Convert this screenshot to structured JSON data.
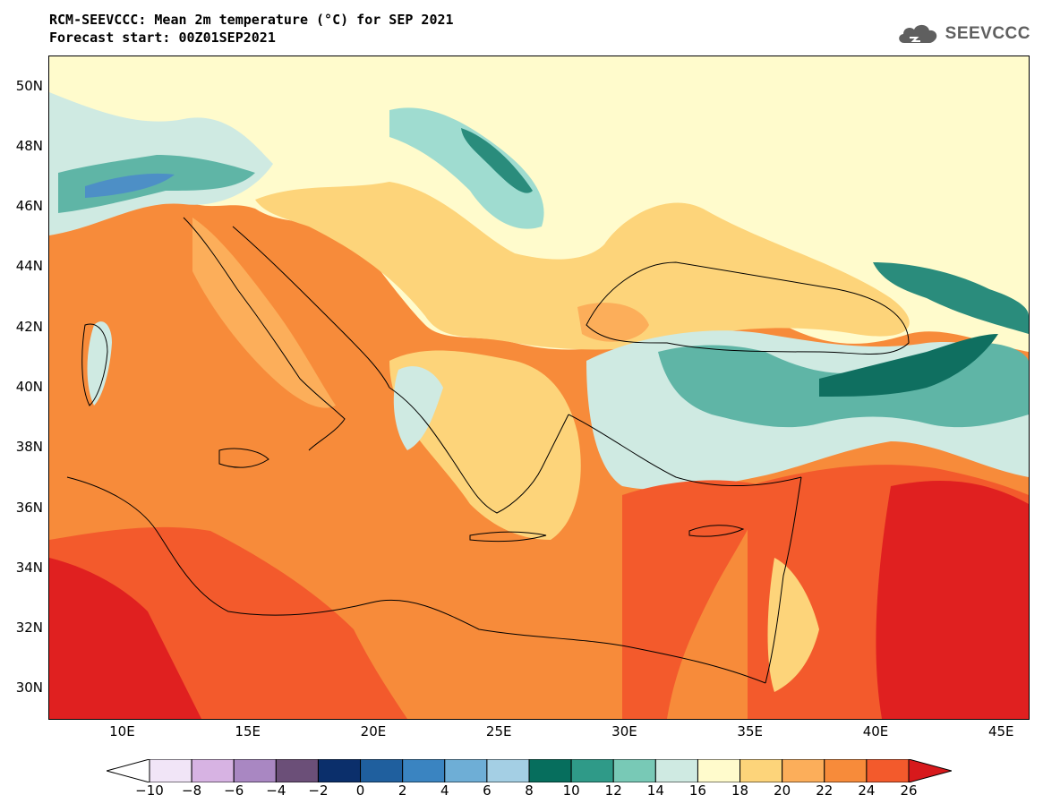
{
  "header": {
    "title_line1": "RCM-SEEVCCC: Mean 2m temperature (°C) for SEP 2021",
    "title_line2": "Forecast start: 00Z01SEP2021",
    "logo_text": "SEEVCCC"
  },
  "axes": {
    "lat_labels": [
      {
        "deg": 50,
        "label": "50N"
      },
      {
        "deg": 48,
        "label": "48N"
      },
      {
        "deg": 46,
        "label": "46N"
      },
      {
        "deg": 44,
        "label": "44N"
      },
      {
        "deg": 42,
        "label": "42N"
      },
      {
        "deg": 40,
        "label": "40N"
      },
      {
        "deg": 38,
        "label": "38N"
      },
      {
        "deg": 36,
        "label": "36N"
      },
      {
        "deg": 34,
        "label": "34N"
      },
      {
        "deg": 32,
        "label": "32N"
      },
      {
        "deg": 30,
        "label": "30N"
      }
    ],
    "lon_labels": [
      {
        "deg": 10,
        "label": "10E"
      },
      {
        "deg": 15,
        "label": "15E"
      },
      {
        "deg": 20,
        "label": "20E"
      },
      {
        "deg": 25,
        "label": "25E"
      },
      {
        "deg": 30,
        "label": "30E"
      },
      {
        "deg": 35,
        "label": "35E"
      },
      {
        "deg": 40,
        "label": "40E"
      },
      {
        "deg": 45,
        "label": "45E"
      }
    ],
    "lon_range": [
      7,
      46
    ],
    "lat_range": [
      29,
      51
    ]
  },
  "colorbar": {
    "labels": [
      "−10",
      "−8",
      "−6",
      "−4",
      "−2",
      "0",
      "2",
      "4",
      "6",
      "8",
      "10",
      "12",
      "14",
      "16",
      "18",
      "20",
      "22",
      "24",
      "26"
    ],
    "under_color": "#ffffff",
    "over_color": "#d7191c",
    "colors": [
      "#f1e5f7",
      "#d7b3e3",
      "#a987c2",
      "#6b4f78",
      "#0b2f6b",
      "#1f5f9e",
      "#3a84c1",
      "#6eaed6",
      "#a4cfe4",
      "#066e5d",
      "#2f9a88",
      "#78c9b6",
      "#cfeae2",
      "#fffbcc",
      "#fdd47a",
      "#fcae5a",
      "#f78b3a",
      "#f35a2c"
    ]
  },
  "map_colors": {
    "t24": "#f78b3a",
    "t26": "#f35a2c",
    "t27": "#e02020",
    "t22": "#fcae5a",
    "t20": "#fdd47a",
    "t18": "#fffbcc",
    "t16": "#cfeae2",
    "t14": "#9fdcd0",
    "t12": "#5fb5a6",
    "t10": "#2a8c7c",
    "t8": "#0f6f60",
    "t6": "#4d8fc6",
    "coast": "#000000"
  }
}
